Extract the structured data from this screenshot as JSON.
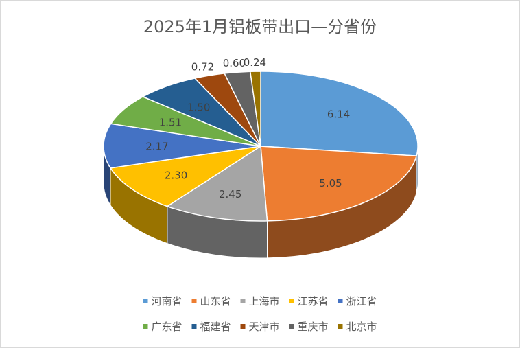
{
  "chart_data": {
    "type": "pie",
    "style": "3d",
    "title": "2025年1月铝板带出口—分省份",
    "legend_position": "bottom",
    "categories": [
      "河南省",
      "山东省",
      "上海市",
      "江苏省",
      "浙江省",
      "广东省",
      "福建省",
      "天津市",
      "重庆市",
      "北京市"
    ],
    "values": [
      6.14,
      5.05,
      2.45,
      2.3,
      2.17,
      1.51,
      1.5,
      0.72,
      0.6,
      0.24
    ],
    "labels": [
      "6.14",
      "5.05",
      "2.45",
      "2.30",
      "2.17",
      "1.51",
      "1.50",
      "0.72",
      "0.60",
      "0.24"
    ],
    "colors": [
      "#5B9BD5",
      "#ED7D31",
      "#A5A5A5",
      "#FFC000",
      "#4472C4",
      "#70AD47",
      "#255E91",
      "#9E480E",
      "#636363",
      "#997300"
    ]
  }
}
